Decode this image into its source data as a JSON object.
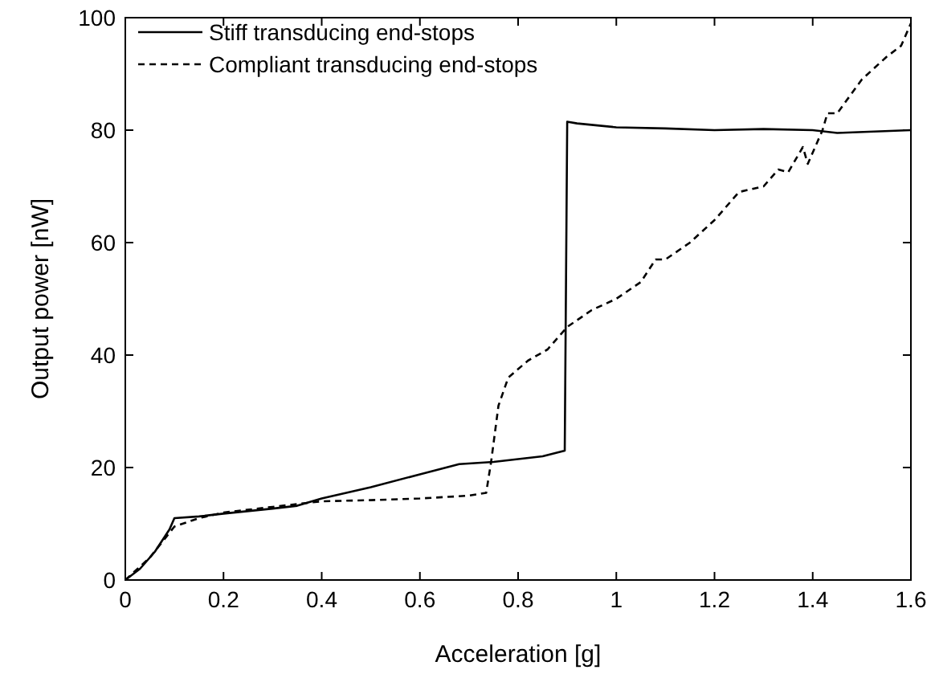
{
  "chart_data": {
    "type": "line",
    "xlabel": "Acceleration [g]",
    "ylabel": "Output power [nW]",
    "xlim": [
      0,
      1.6
    ],
    "ylim": [
      0,
      100
    ],
    "xticks": [
      0,
      0.2,
      0.4,
      0.6,
      0.8,
      1,
      1.2,
      1.4,
      1.6
    ],
    "yticks": [
      0,
      20,
      40,
      60,
      80,
      100
    ],
    "grid": false,
    "legend": "top left",
    "series": [
      {
        "name": "Stiff transducing end-stops",
        "color": "#000000",
        "line_style": "solid",
        "x": [
          0,
          0.03,
          0.06,
          0.09,
          0.1,
          0.15,
          0.2,
          0.3,
          0.35,
          0.4,
          0.5,
          0.6,
          0.68,
          0.75,
          0.85,
          0.895,
          0.9,
          0.92,
          1.0,
          1.1,
          1.2,
          1.3,
          1.4,
          1.45,
          1.6
        ],
        "values": [
          0,
          2,
          5,
          9,
          11,
          11.3,
          11.8,
          12.7,
          13.2,
          14.5,
          16.5,
          18.8,
          20.6,
          21,
          22,
          23,
          81.5,
          81.2,
          80.5,
          80.3,
          80,
          80.2,
          80,
          79.5,
          80
        ]
      },
      {
        "name": "Compliant transducing end-stops",
        "color": "#000000",
        "line_style": "dashed",
        "x": [
          0,
          0.05,
          0.1,
          0.15,
          0.2,
          0.3,
          0.35,
          0.4,
          0.5,
          0.6,
          0.7,
          0.735,
          0.745,
          0.76,
          0.78,
          0.82,
          0.86,
          0.9,
          0.95,
          1.0,
          1.05,
          1.08,
          1.1,
          1.15,
          1.2,
          1.22,
          1.25,
          1.3,
          1.33,
          1.35,
          1.38,
          1.39,
          1.42,
          1.43,
          1.45,
          1.5,
          1.55,
          1.58,
          1.6
        ],
        "values": [
          0,
          4,
          9.5,
          11,
          12,
          13,
          13.5,
          14,
          14.2,
          14.5,
          15,
          15.5,
          21,
          31,
          36,
          39,
          41,
          45,
          48,
          50,
          53,
          57,
          57,
          60,
          64,
          66,
          69,
          70,
          73,
          72.5,
          77,
          74,
          80,
          83,
          83,
          89,
          93,
          95,
          99
        ]
      }
    ]
  }
}
